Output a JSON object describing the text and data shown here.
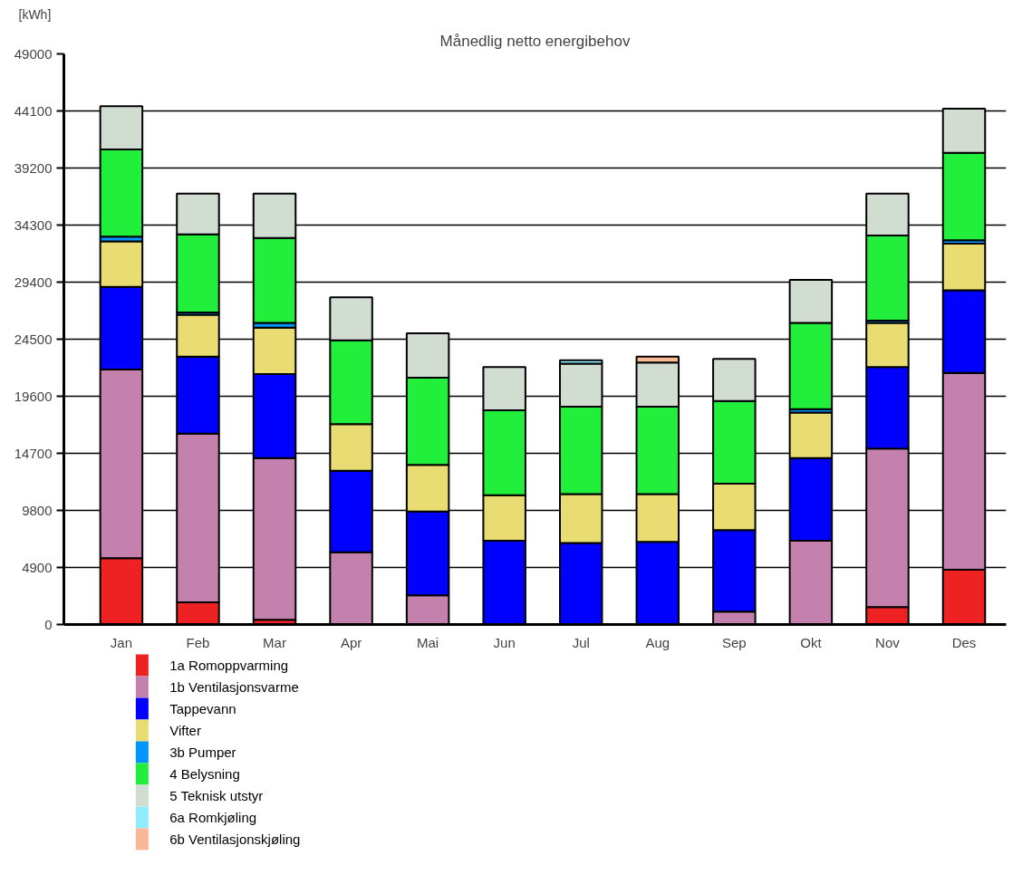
{
  "chart_data": {
    "type": "bar",
    "title": "Månedlig netto energibehov",
    "ylabel": "[kWh]",
    "categories": [
      "Jan",
      "Feb",
      "Mar",
      "Apr",
      "Mai",
      "Jun",
      "Jul",
      "Aug",
      "Sep",
      "Okt",
      "Nov",
      "Des"
    ],
    "stacked": true,
    "ylim": [
      0,
      49000
    ],
    "yticks": [
      0,
      4900,
      9800,
      14700,
      19600,
      24500,
      29400,
      34300,
      39200,
      44100,
      49000
    ],
    "grid": "y",
    "legend": "bottom",
    "series": [
      {
        "name": "1a Romoppvarming",
        "color": "#ee2222",
        "values": [
          5700,
          1900,
          400,
          null,
          null,
          null,
          null,
          null,
          null,
          null,
          1500,
          4700
        ]
      },
      {
        "name": "1b Ventilasjonsvarme",
        "color": "#c481ae",
        "values": [
          16200,
          14500,
          13900,
          6200,
          2500,
          null,
          null,
          null,
          1100,
          7200,
          13600,
          16900
        ]
      },
      {
        "name": "Tappevann",
        "color": "#0000ff",
        "values": [
          7100,
          6600,
          7200,
          7000,
          7200,
          7200,
          7000,
          7100,
          7000,
          7100,
          7000,
          7100
        ]
      },
      {
        "name": "Vifter",
        "color": "#e8dc72",
        "values": [
          3900,
          3600,
          4000,
          4000,
          4000,
          3900,
          4200,
          4100,
          4000,
          3900,
          3800,
          4000
        ]
      },
      {
        "name": "3b Pumper",
        "color": "#0096ff",
        "values": [
          400,
          200,
          400,
          null,
          null,
          null,
          null,
          null,
          null,
          300,
          200,
          300
        ]
      },
      {
        "name": "4   Belysning",
        "color": "#22ee3c",
        "values": [
          7500,
          6700,
          7300,
          7200,
          7500,
          7300,
          7500,
          7500,
          7100,
          7400,
          7300,
          7500
        ]
      },
      {
        "name": "5   Teknisk utstyr",
        "color": "#d0ddd0",
        "values": [
          3700,
          3500,
          3800,
          3700,
          3800,
          3700,
          3700,
          3800,
          3600,
          3700,
          3600,
          3800
        ]
      },
      {
        "name": "6a Romkjøling",
        "color": "#90ecff",
        "values": [
          null,
          null,
          null,
          null,
          null,
          null,
          300,
          null,
          null,
          null,
          null,
          null
        ]
      },
      {
        "name": "6b Ventilasjonskjøling",
        "color": "#f9b997",
        "values": [
          null,
          null,
          null,
          null,
          null,
          null,
          null,
          500,
          null,
          null,
          null,
          null
        ]
      }
    ]
  }
}
